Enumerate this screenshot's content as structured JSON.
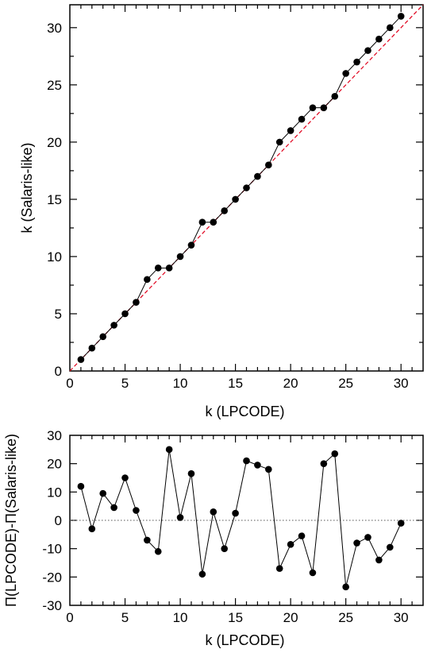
{
  "colors": {
    "data": "#000000",
    "reference": "#e0001b",
    "zero_line": "#555555"
  },
  "chart_data": [
    {
      "type": "line",
      "panel": "top",
      "xlabel": "k (LPCODE)",
      "ylabel": "k (Salaris-like)",
      "xlim": [
        0,
        32
      ],
      "ylim": [
        0,
        32
      ],
      "xticks": [
        0,
        5,
        10,
        15,
        20,
        25,
        30
      ],
      "yticks": [
        0,
        5,
        10,
        15,
        20,
        25,
        30
      ],
      "grid": false,
      "reference_line": {
        "style": "dashed",
        "color": "#e0001b",
        "equation": "y = x"
      },
      "series": [
        {
          "x": [
            1,
            2,
            3,
            4,
            5,
            6,
            7,
            8,
            9,
            10,
            11,
            12,
            13,
            14,
            15,
            16,
            17,
            18,
            19,
            20,
            21,
            22,
            23,
            24,
            25,
            26,
            27,
            28,
            29,
            30
          ],
          "y": [
            1,
            2,
            3,
            4,
            5,
            6,
            8,
            9,
            9,
            10,
            11,
            13,
            13,
            14,
            15,
            16,
            17,
            18,
            20,
            21,
            22,
            23,
            23,
            24,
            26,
            27,
            28,
            29,
            30,
            31
          ]
        }
      ]
    },
    {
      "type": "line",
      "panel": "bottom",
      "xlabel": "k (LPCODE)",
      "ylabel": "Π(LPCODE)-Π(Salaris-like)",
      "xlim": [
        0,
        32
      ],
      "ylim": [
        -30,
        30
      ],
      "xticks": [
        0,
        5,
        10,
        15,
        20,
        25,
        30
      ],
      "yticks": [
        -30,
        -20,
        -10,
        0,
        10,
        20,
        30
      ],
      "grid": false,
      "zero_line": {
        "style": "dotted",
        "y": 0
      },
      "series": [
        {
          "x": [
            1,
            2,
            3,
            4,
            5,
            6,
            7,
            8,
            9,
            10,
            11,
            12,
            13,
            14,
            15,
            16,
            17,
            18,
            19,
            20,
            21,
            22,
            23,
            24,
            25,
            26,
            27,
            28,
            29,
            30
          ],
          "y": [
            12,
            -3,
            9.5,
            4.5,
            15,
            3.5,
            -7,
            -11,
            25,
            1,
            16.5,
            -19,
            3,
            -10,
            2.5,
            21,
            19.5,
            18,
            -17,
            -8.5,
            -5.5,
            -18.5,
            20,
            23.5,
            -23.5,
            -8,
            -6,
            -14,
            -9.5,
            -1
          ]
        }
      ]
    }
  ]
}
